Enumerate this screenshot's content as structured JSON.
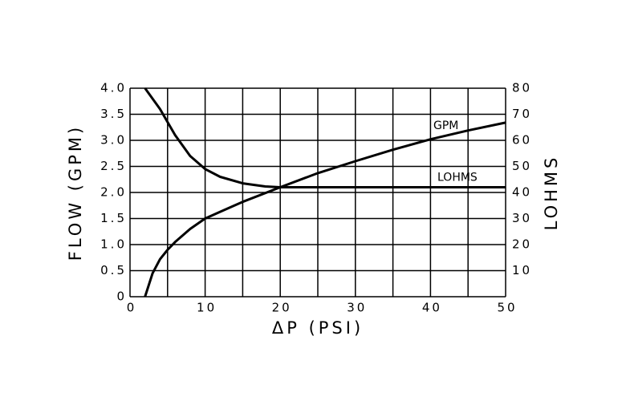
{
  "chart_data": {
    "type": "line",
    "xlabel": "ΔP (PSI)",
    "ylabel": "FLOW    (GPM)",
    "y2label": "LOHMS",
    "xlim": [
      0,
      50
    ],
    "xticks": [
      0,
      10,
      20,
      30,
      40,
      50
    ],
    "minor_xticks": [
      5,
      15,
      25,
      35,
      45
    ],
    "ylim": [
      0,
      4
    ],
    "yticks": [
      0,
      0.5,
      {
        "value": 1,
        "label": "1.0"
      },
      1.5,
      {
        "value": 2,
        "label": "2.0"
      },
      2.5,
      {
        "value": 3,
        "label": "3.0"
      },
      3.5,
      {
        "value": 4,
        "label": "4.0"
      }
    ],
    "y2lim": [
      0,
      80
    ],
    "y2ticks": [
      10,
      20,
      30,
      40,
      50,
      60,
      70,
      80
    ],
    "grid": true,
    "series": [
      {
        "name": "GPM",
        "color": "#000000",
        "axis": "y",
        "x": [
          2,
          3,
          4,
          5,
          6,
          8,
          10,
          12,
          15,
          20,
          25,
          30,
          35,
          40,
          45,
          50
        ],
        "values": [
          0,
          0.45,
          0.72,
          0.9,
          1.05,
          1.3,
          1.5,
          1.63,
          1.82,
          2.1,
          2.37,
          2.6,
          2.82,
          3.02,
          3.19,
          3.34
        ]
      },
      {
        "name": "LOHMS",
        "color": "#000000",
        "axis": "y2",
        "x": [
          2,
          4,
          5,
          6,
          8,
          10,
          12,
          15,
          18,
          20,
          50
        ],
        "values": [
          80,
          72,
          67,
          62,
          54,
          49,
          46,
          43.5,
          42.3,
          42,
          42
        ]
      }
    ]
  }
}
